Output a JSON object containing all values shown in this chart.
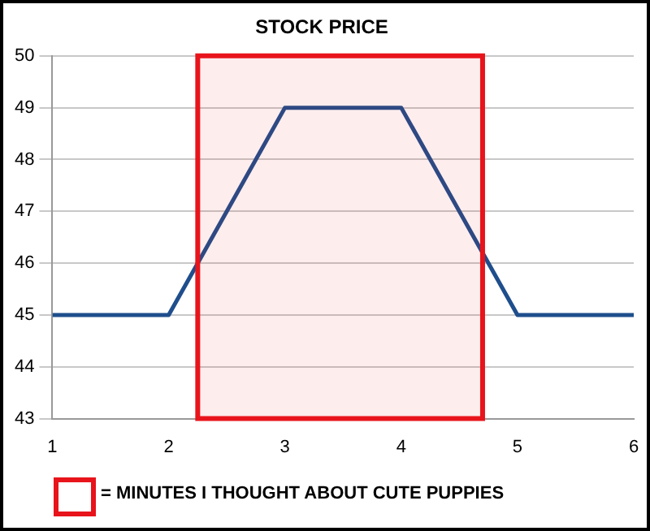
{
  "chart_data": {
    "type": "line",
    "title": "STOCK PRICE",
    "x": [
      1,
      2,
      3,
      4,
      5,
      6
    ],
    "series": [
      {
        "color": "#1f4e8c",
        "values": [
          45,
          45,
          49,
          49,
          45,
          45
        ]
      }
    ],
    "xlim": [
      1,
      6
    ],
    "xticks": [
      1,
      2,
      3,
      4,
      5,
      6
    ],
    "ylim": [
      43,
      50
    ],
    "yticks": [
      43,
      44,
      45,
      46,
      47,
      48,
      49,
      50
    ],
    "grid": "y",
    "legend": "bottom",
    "marker": "none",
    "line_style": "solid",
    "bands": [
      {
        "axis": "x",
        "from": 2.25,
        "to": 4.7,
        "label": "= MINUTES I THOUGHT ABOUT CUTE PUPPIES",
        "color": "#e8141b"
      }
    ]
  }
}
